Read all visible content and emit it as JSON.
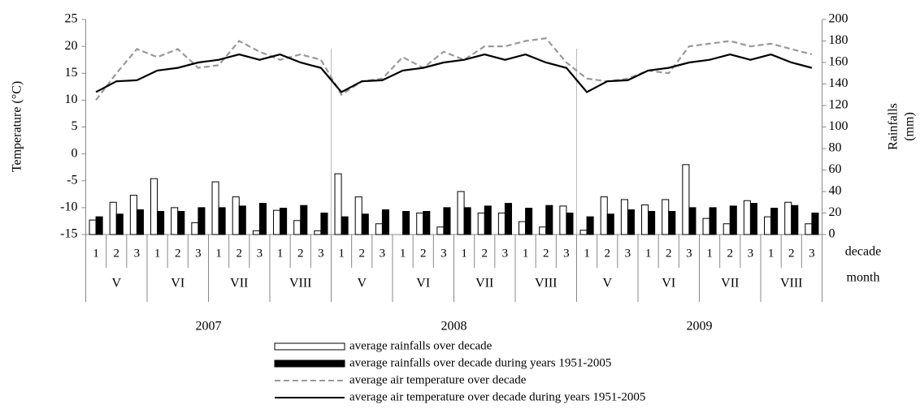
{
  "chart_data": {
    "type": "combo",
    "ylabel": "Temperature (°C)",
    "y2label": [
      "Rainfalls",
      "(mm)"
    ],
    "ylim": [
      -15,
      25
    ],
    "yticks": [
      -15,
      -10,
      -5,
      0,
      5,
      10,
      15,
      20,
      25
    ],
    "y2lim": [
      0,
      200
    ],
    "y2ticks": [
      0,
      20,
      40,
      60,
      80,
      100,
      120,
      140,
      160,
      180,
      200
    ],
    "x_level_labels": [
      "decade",
      "month"
    ],
    "categories": [
      "1",
      "2",
      "3",
      "1",
      "2",
      "3",
      "1",
      "2",
      "3",
      "1",
      "2",
      "3",
      "1",
      "2",
      "3",
      "1",
      "2",
      "3",
      "1",
      "2",
      "3",
      "1",
      "2",
      "3",
      "1",
      "2",
      "3",
      "1",
      "2",
      "3",
      "1",
      "2",
      "3",
      "1",
      "2",
      "3"
    ],
    "month_labels": [
      "V",
      "VI",
      "VII",
      "VIII",
      "V",
      "VI",
      "VII",
      "VIII",
      "V",
      "VI",
      "VII",
      "VIII"
    ],
    "year_labels": [
      "2007",
      "2008",
      "2009"
    ],
    "series": [
      {
        "name": "average rainfalls over decade",
        "kind": "bar",
        "axis": "y2",
        "color": "#ffffff",
        "edgecolor": "#000000",
        "values": [
          13.5,
          30,
          36.5,
          52,
          25,
          11,
          49,
          35,
          3.5,
          22.5,
          13,
          3.5,
          56.5,
          35,
          10,
          0,
          20,
          7,
          40,
          20,
          20,
          12,
          7,
          26.5,
          4,
          35,
          32.5,
          27.5,
          32.5,
          65,
          15,
          10,
          31.5,
          16.5,
          30,
          10
        ]
      },
      {
        "name": "average rainfalls over decade during years 1951-2005",
        "kind": "bar",
        "axis": "y2",
        "color": "#000000",
        "edgecolor": "#000000",
        "values": [
          16.5,
          19,
          23,
          21.5,
          21.5,
          25,
          25,
          26.5,
          29,
          24.5,
          27,
          20,
          16.5,
          19,
          23,
          21.5,
          21.5,
          25,
          25,
          26.5,
          29,
          24.5,
          27,
          20,
          16.5,
          19,
          23,
          21.5,
          21.5,
          25,
          25,
          26.5,
          29,
          24.5,
          27,
          20
        ]
      },
      {
        "name": "average air temperature over decade",
        "kind": "line",
        "axis": "y",
        "color": "#999999",
        "linestyle": "dashed",
        "values": [
          10,
          15,
          19.5,
          18,
          19.5,
          16,
          16.5,
          21,
          19,
          17.5,
          18.5,
          17.5,
          11,
          13.5,
          14,
          18,
          16,
          19,
          17.5,
          20,
          20,
          21,
          21.5,
          17,
          14,
          13.5,
          14,
          15.5,
          15,
          20,
          20.5,
          21,
          20,
          20.5,
          19.5,
          18.5
        ]
      },
      {
        "name": "average air temperature over decade during years 1951-2005",
        "kind": "line",
        "axis": "y",
        "color": "#000000",
        "linestyle": "solid",
        "values": [
          11.5,
          13.5,
          13.7,
          15.5,
          16,
          17,
          17.5,
          18.5,
          17.5,
          18.5,
          17,
          16,
          11.5,
          13.5,
          13.7,
          15.5,
          16,
          17,
          17.5,
          18.5,
          17.5,
          18.5,
          17,
          16,
          11.5,
          13.5,
          13.7,
          15.5,
          16,
          17,
          17.5,
          18.5,
          17.5,
          18.5,
          17,
          16
        ]
      }
    ]
  }
}
